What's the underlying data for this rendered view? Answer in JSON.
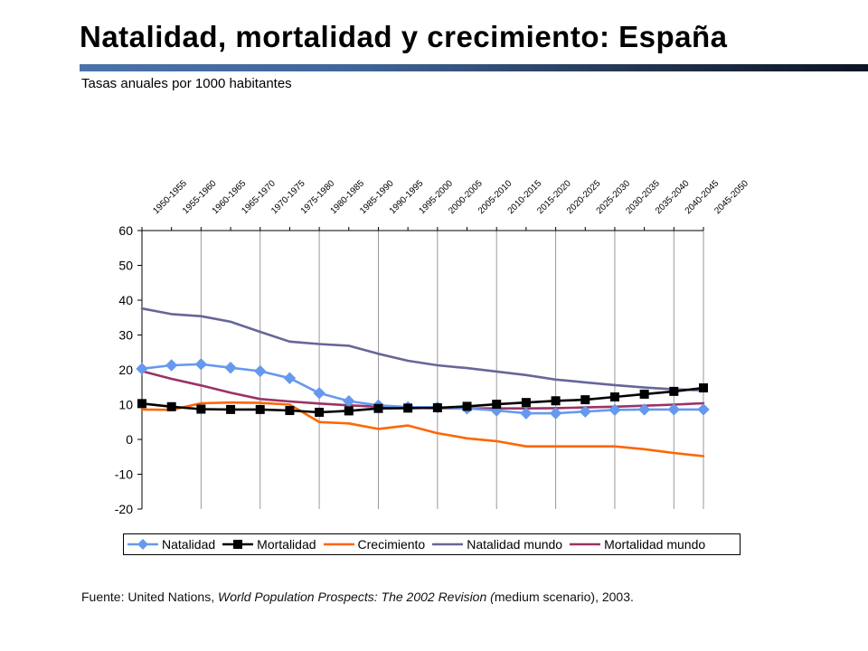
{
  "slide": {
    "title": "Natalidad, mortalidad y crecimiento: España",
    "subtitle": "Tasas anuales por 1000 habitantes",
    "source": {
      "prefix": "Fuente: United Nations, ",
      "work": "World Population Prospects: The 2002 Revision (",
      "scenario": "medium scenario)",
      "suffix": ", 2003."
    }
  },
  "chart_data": {
    "type": "line",
    "title": "",
    "xlabel": "",
    "ylabel": "",
    "ylim": [
      -20,
      60
    ],
    "yticks": [
      60,
      50,
      40,
      30,
      20,
      10,
      0,
      -10,
      -20
    ],
    "x_axis_position": "top",
    "gridlines": "vertical",
    "legend_position": "bottom",
    "categories": [
      "1950-1955",
      "1955-1960",
      "1960-1965",
      "1965-1970",
      "1970-1975",
      "1975-1980",
      "1980-1985",
      "1985-1990",
      "1990-1995",
      "1995-2000",
      "2000-2005",
      "2005-2010",
      "2010-2015",
      "2015-2020",
      "2020-2025",
      "2025-2030",
      "2030-2035",
      "2035-2040",
      "2040-2045",
      "2045-2050"
    ],
    "series": [
      {
        "name": "Natalidad",
        "color": "#6699ee",
        "marker": "diamond",
        "values": [
          20.3,
          21.3,
          21.6,
          20.6,
          19.6,
          17.6,
          13.3,
          11.0,
          9.8,
          9.3,
          9.2,
          8.9,
          8.3,
          7.5,
          7.5,
          8.0,
          8.5,
          8.6,
          8.6,
          8.6
        ]
      },
      {
        "name": "Mortalidad",
        "color": "#000000",
        "marker": "square",
        "values": [
          10.3,
          9.4,
          8.7,
          8.6,
          8.6,
          8.3,
          7.8,
          8.2,
          8.9,
          9.0,
          9.1,
          9.5,
          10.1,
          10.6,
          11.1,
          11.4,
          12.2,
          13.0,
          13.8,
          14.8
        ]
      },
      {
        "name": "Crecimiento",
        "color": "#ff6600",
        "marker": "none",
        "values": [
          8.6,
          8.5,
          10.4,
          10.6,
          10.5,
          10.0,
          5.0,
          4.6,
          3.0,
          4.0,
          1.8,
          0.3,
          -0.5,
          -2.0,
          -2.0,
          -2.0,
          -2.0,
          -2.8,
          -3.9,
          -4.8
        ]
      },
      {
        "name": "Natalidad mundo",
        "color": "#666699",
        "marker": "none",
        "values": [
          37.6,
          36.0,
          35.4,
          33.8,
          30.9,
          28.1,
          27.4,
          26.9,
          24.6,
          22.6,
          21.3,
          20.5,
          19.5,
          18.5,
          17.2,
          16.4,
          15.6,
          14.9,
          14.4,
          14.1
        ]
      },
      {
        "name": "Mortalidad mundo",
        "color": "#993366",
        "marker": "none",
        "values": [
          19.6,
          17.4,
          15.5,
          13.4,
          11.6,
          10.9,
          10.3,
          9.8,
          9.4,
          9.1,
          9.0,
          8.9,
          8.9,
          8.9,
          9.0,
          9.2,
          9.4,
          9.7,
          10.0,
          10.4
        ]
      }
    ]
  }
}
